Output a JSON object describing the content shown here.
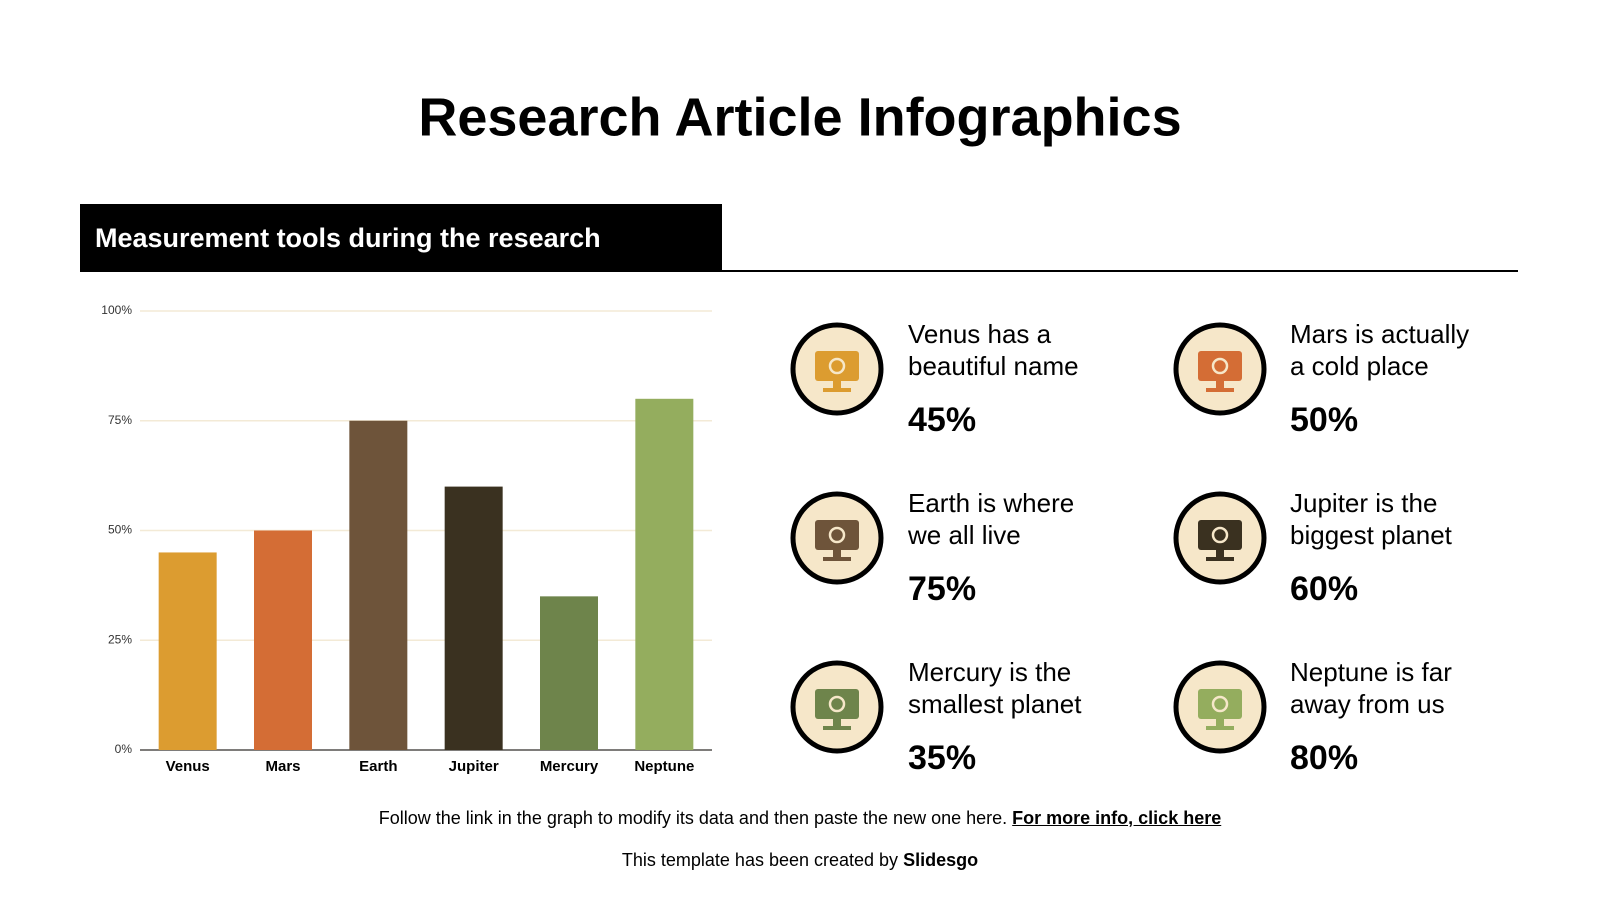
{
  "header": {
    "title": "Research Article Infographics",
    "section": "Measurement tools during the research"
  },
  "chart_data": {
    "type": "bar",
    "categories": [
      "Venus",
      "Mars",
      "Earth",
      "Jupiter",
      "Mercury",
      "Neptune"
    ],
    "values": [
      45,
      50,
      75,
      60,
      35,
      80
    ],
    "colors": [
      "#dc9c30",
      "#d46d35",
      "#6e543a",
      "#3a3120",
      "#6e844b",
      "#94ad5e"
    ],
    "ylim": [
      0,
      100
    ],
    "yticks": [
      {
        "value": 0,
        "label": "0%"
      },
      {
        "value": 25,
        "label": "25%"
      },
      {
        "value": 50,
        "label": "50%"
      },
      {
        "value": 75,
        "label": "75%"
      },
      {
        "value": 100,
        "label": "100%"
      }
    ],
    "grid": true
  },
  "items": [
    {
      "lines": [
        "Venus has a",
        "beautiful name"
      ],
      "value": "45%"
    },
    {
      "lines": [
        "Mars is actually",
        "a cold place"
      ],
      "value": "50%"
    },
    {
      "lines": [
        "Earth is where",
        "we all live"
      ],
      "value": "75%"
    },
    {
      "lines": [
        "Jupiter is the",
        "biggest planet"
      ],
      "value": "60%"
    },
    {
      "lines": [
        "Mercury is the",
        "smallest planet"
      ],
      "value": "35%"
    },
    {
      "lines": [
        "Neptune is far",
        "away from us"
      ],
      "value": "80%"
    }
  ],
  "footer": {
    "note": "Follow the link in the graph to modify its data and then paste the new one here.",
    "link": "For more info, click here",
    "credit": "This template has been created by",
    "brand": "Slidesgo"
  }
}
